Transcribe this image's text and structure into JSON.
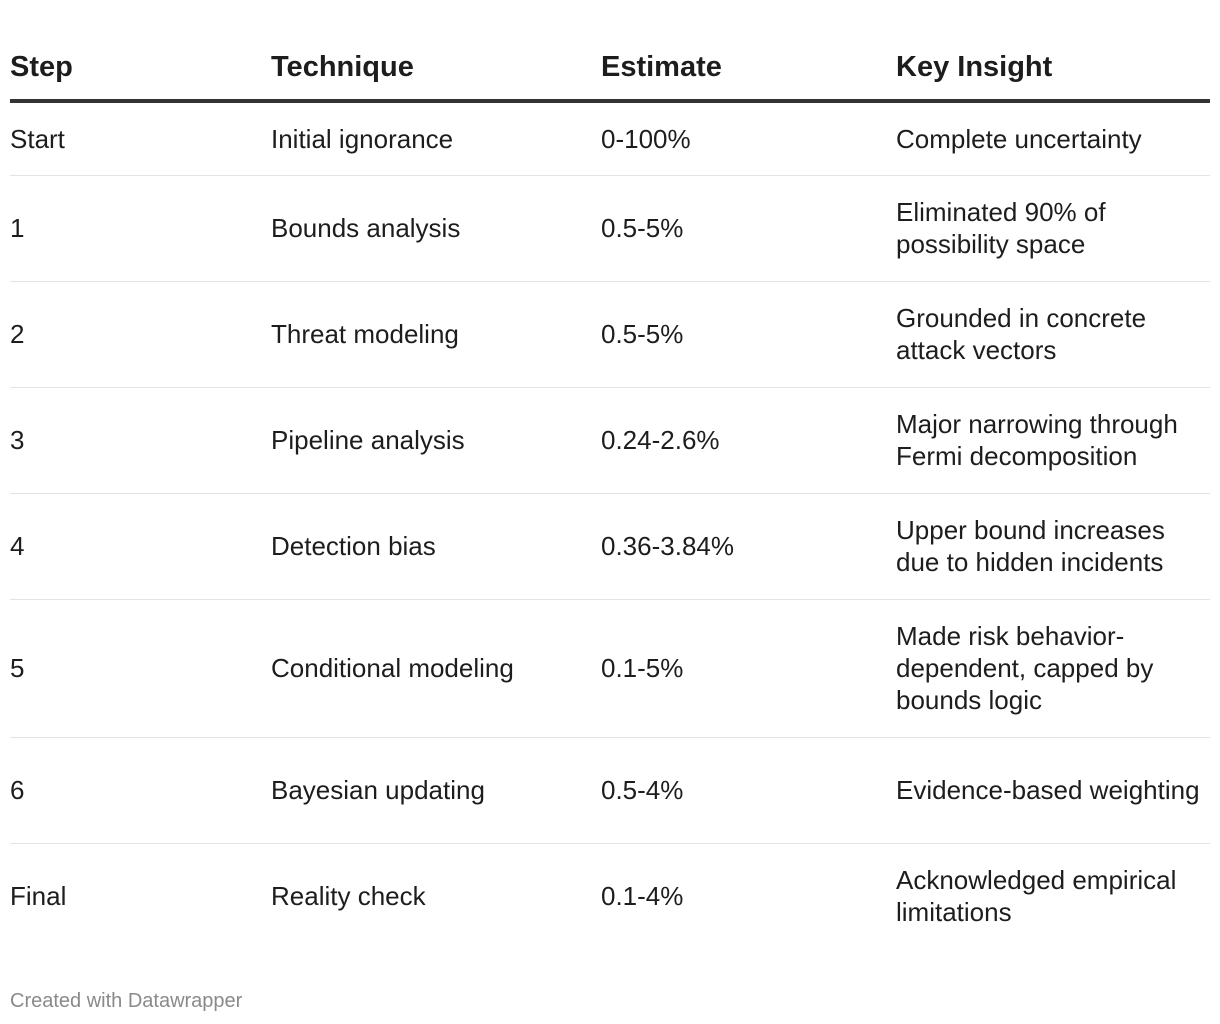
{
  "table": {
    "headers": {
      "step": "Step",
      "technique": "Technique",
      "estimate": "Estimate",
      "key_insight": "Key Insight"
    },
    "rows": [
      {
        "step": "Start",
        "technique": "Initial ignorance",
        "estimate": "0-100%",
        "key_insight": "Complete uncertainty"
      },
      {
        "step": "1",
        "technique": "Bounds analysis",
        "estimate": "0.5-5%",
        "key_insight": "Eliminated 90% of possibility space"
      },
      {
        "step": "2",
        "technique": "Threat modeling",
        "estimate": "0.5-5%",
        "key_insight": "Grounded in concrete attack vectors"
      },
      {
        "step": "3",
        "technique": "Pipeline analysis",
        "estimate": "0.24-2.6%",
        "key_insight": "Major narrowing through Fermi decomposition"
      },
      {
        "step": "4",
        "technique": "Detection bias",
        "estimate": "0.36-3.84%",
        "key_insight": "Upper bound increases due to hidden incidents"
      },
      {
        "step": "5",
        "technique": "Conditional modeling",
        "estimate": "0.1-5%",
        "key_insight": "Made risk behavior-dependent, capped by bounds logic"
      },
      {
        "step": "6",
        "technique": "Bayesian updating",
        "estimate": "0.5-4%",
        "key_insight": "Evidence-based weighting"
      },
      {
        "step": "Final",
        "technique": "Reality check",
        "estimate": "0.1-4%",
        "key_insight": "Acknowledged empirical limitations"
      }
    ]
  },
  "footer": {
    "credit": "Created with Datawrapper"
  }
}
